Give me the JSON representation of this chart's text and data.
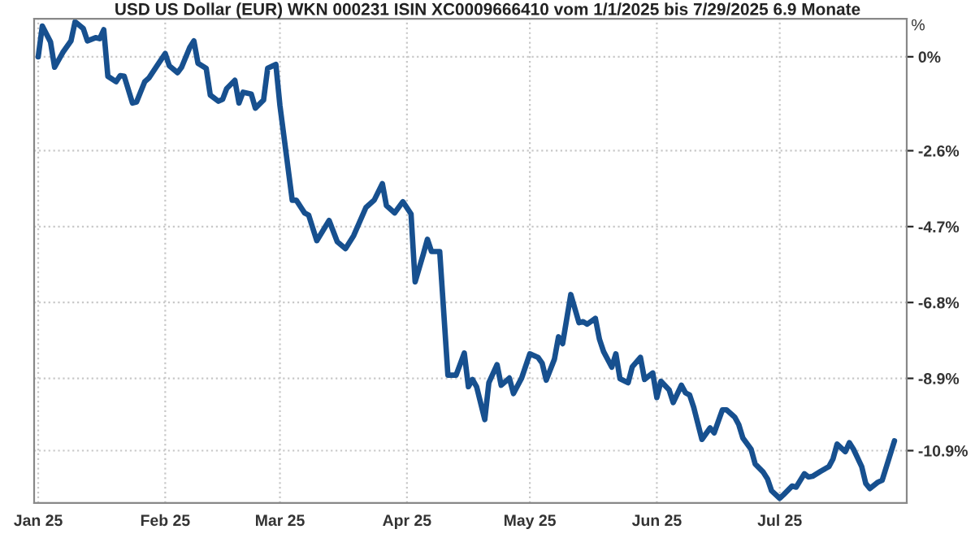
{
  "chart_data": {
    "type": "line",
    "title": "USD US Dollar (EUR) WKN 000231 ISIN XC0009666410 vom 1/1/2025 bis 7/29/2025 6.9 Monate",
    "ylabel": "%",
    "x": [
      "2025-01-01",
      "2025-01-02",
      "2025-01-04",
      "2025-01-05",
      "2025-01-07",
      "2025-01-09",
      "2025-01-10",
      "2025-01-12",
      "2025-01-13",
      "2025-01-15",
      "2025-01-16",
      "2025-01-17",
      "2025-01-18",
      "2025-01-20",
      "2025-01-21",
      "2025-01-22",
      "2025-01-24",
      "2025-01-25",
      "2025-01-27",
      "2025-01-28",
      "2025-01-30",
      "2025-02-01",
      "2025-02-02",
      "2025-02-04",
      "2025-02-05",
      "2025-02-07",
      "2025-02-08",
      "2025-02-09",
      "2025-02-11",
      "2025-02-12",
      "2025-02-14",
      "2025-02-15",
      "2025-02-16",
      "2025-02-18",
      "2025-02-19",
      "2025-02-20",
      "2025-02-22",
      "2025-02-23",
      "2025-02-25",
      "2025-02-26",
      "2025-02-28",
      "2025-03-01",
      "2025-03-04",
      "2025-03-05",
      "2025-03-07",
      "2025-03-08",
      "2025-03-10",
      "2025-03-13",
      "2025-03-15",
      "2025-03-17",
      "2025-03-19",
      "2025-03-22",
      "2025-03-24",
      "2025-03-26",
      "2025-03-27",
      "2025-03-29",
      "2025-03-31",
      "2025-04-02",
      "2025-04-03",
      "2025-04-05",
      "2025-04-06",
      "2025-04-07",
      "2025-04-09",
      "2025-04-11",
      "2025-04-13",
      "2025-04-15",
      "2025-04-16",
      "2025-04-17",
      "2025-04-18",
      "2025-04-20",
      "2025-04-21",
      "2025-04-23",
      "2025-04-24",
      "2025-04-26",
      "2025-04-27",
      "2025-04-29",
      "2025-05-01",
      "2025-05-03",
      "2025-05-04",
      "2025-05-05",
      "2025-05-07",
      "2025-05-08",
      "2025-05-09",
      "2025-05-11",
      "2025-05-13",
      "2025-05-14",
      "2025-05-15",
      "2025-05-17",
      "2025-05-18",
      "2025-05-19",
      "2025-05-21",
      "2025-05-22",
      "2025-05-23",
      "2025-05-25",
      "2025-05-26",
      "2025-05-28",
      "2025-05-29",
      "2025-05-31",
      "2025-06-01",
      "2025-06-02",
      "2025-06-04",
      "2025-06-05",
      "2025-06-07",
      "2025-06-08",
      "2025-06-09",
      "2025-06-10",
      "2025-06-12",
      "2025-06-14",
      "2025-06-15",
      "2025-06-17",
      "2025-06-18",
      "2025-06-20",
      "2025-06-21",
      "2025-06-22",
      "2025-06-24",
      "2025-06-25",
      "2025-06-27",
      "2025-06-28",
      "2025-06-29",
      "2025-07-01",
      "2025-07-02",
      "2025-07-04",
      "2025-07-05",
      "2025-07-07",
      "2025-07-08",
      "2025-07-09",
      "2025-07-11",
      "2025-07-13",
      "2025-07-14",
      "2025-07-15",
      "2025-07-17",
      "2025-07-18",
      "2025-07-19",
      "2025-07-21",
      "2025-07-22",
      "2025-07-23",
      "2025-07-25",
      "2025-07-26",
      "2025-07-29"
    ],
    "series": [
      {
        "color": "#17508f",
        "values": [
          0.0,
          0.85,
          0.41,
          -0.29,
          0.12,
          0.44,
          0.97,
          0.78,
          0.44,
          0.53,
          0.5,
          0.75,
          -0.54,
          -0.69,
          -0.52,
          -0.54,
          -1.28,
          -1.25,
          -0.69,
          -0.59,
          -0.25,
          0.09,
          -0.25,
          -0.44,
          -0.29,
          0.26,
          0.44,
          -0.18,
          -0.32,
          -1.06,
          -1.23,
          -1.18,
          -0.88,
          -0.65,
          -1.28,
          -0.98,
          -1.03,
          -1.42,
          -1.2,
          -0.32,
          -0.21,
          -1.35,
          -3.97,
          -3.97,
          -4.32,
          -4.38,
          -5.09,
          -4.53,
          -5.12,
          -5.31,
          -4.95,
          -4.17,
          -3.97,
          -3.51,
          -4.12,
          -4.32,
          -4.01,
          -4.35,
          -6.23,
          -5.46,
          -5.05,
          -5.39,
          -5.39,
          -8.81,
          -8.81,
          -8.2,
          -9.13,
          -8.93,
          -9.13,
          -10.04,
          -9.02,
          -8.52,
          -9.09,
          -8.89,
          -9.32,
          -8.89,
          -8.22,
          -8.32,
          -8.48,
          -8.95,
          -8.37,
          -7.75,
          -7.94,
          -6.58,
          -7.36,
          -7.33,
          -7.4,
          -7.24,
          -7.82,
          -8.16,
          -8.59,
          -8.22,
          -8.91,
          -9.02,
          -8.58,
          -8.32,
          -8.93,
          -8.75,
          -9.43,
          -8.98,
          -9.22,
          -9.57,
          -9.09,
          -9.3,
          -9.36,
          -9.7,
          -10.59,
          -10.27,
          -10.41,
          -9.77,
          -9.77,
          -9.97,
          -10.18,
          -10.55,
          -10.86,
          -11.27,
          -11.5,
          -11.68,
          -12.01,
          -12.22,
          -12.11,
          -11.88,
          -11.91,
          -11.54,
          -11.63,
          -11.61,
          -11.47,
          -11.34,
          -11.13,
          -10.72,
          -10.93,
          -10.68,
          -10.86,
          -11.34,
          -11.81,
          -11.95,
          -11.77,
          -11.72,
          -10.63
        ]
      }
    ],
    "xlim": [
      "2024-12-31",
      "2025-08-01"
    ],
    "xticks": [
      {
        "value": "2025-01-01",
        "label": "Jan 25"
      },
      {
        "value": "2025-02-01",
        "label": "Feb 25"
      },
      {
        "value": "2025-03-01",
        "label": "Mar 25"
      },
      {
        "value": "2025-04-01",
        "label": "Apr 25"
      },
      {
        "value": "2025-05-01",
        "label": "May 25"
      },
      {
        "value": "2025-06-01",
        "label": "Jun 25"
      },
      {
        "value": "2025-07-01",
        "label": "Jul 25"
      }
    ],
    "ylim": [
      -12.35,
      1.05
    ],
    "yticks": [
      {
        "value": 0,
        "label": "0%"
      },
      {
        "value": -2.6,
        "label": "-2.6%"
      },
      {
        "value": -4.7,
        "label": "-4.7%"
      },
      {
        "value": -6.8,
        "label": "-6.8%"
      },
      {
        "value": -8.9,
        "label": "-8.9%"
      },
      {
        "value": -10.9,
        "label": "-10.9%"
      }
    ],
    "grid": true,
    "marker": "none",
    "line_style": "solid"
  }
}
